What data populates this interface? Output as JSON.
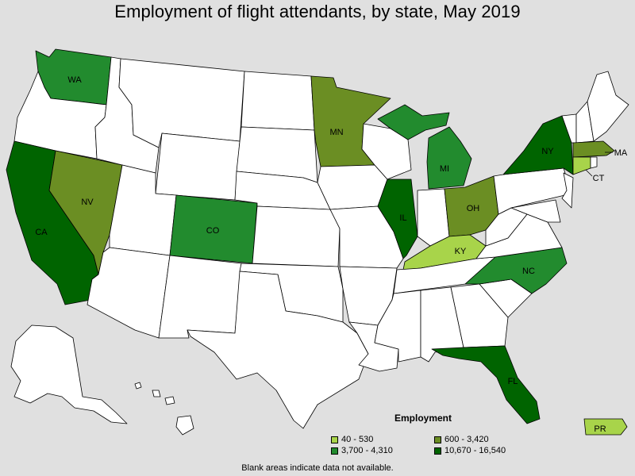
{
  "title": "Employment of flight attendants, by state, May 2019",
  "legend": {
    "title": "Employment",
    "items": [
      {
        "range": "40 - 530",
        "color": "#a8d44a"
      },
      {
        "range": "600 - 3,420",
        "color": "#6b8e23"
      },
      {
        "range": "3,700 - 4,310",
        "color": "#228b2e"
      },
      {
        "range": "10,670 - 16,540",
        "color": "#006400"
      }
    ]
  },
  "footnote": "Blank areas indicate data not available.",
  "state_labels": {
    "WA": "WA",
    "NV": "NV",
    "CA": "CA",
    "CO": "CO",
    "MN": "MN",
    "MI": "MI",
    "IL": "IL",
    "OH": "OH",
    "KY": "KY",
    "NY": "NY",
    "MA": "MA",
    "CT": "CT",
    "NC": "NC",
    "FL": "FL",
    "PR": "PR"
  },
  "map_data": {
    "WA": "3,700 - 4,310",
    "CO": "3,700 - 4,310",
    "MI": "3,700 - 4,310",
    "NC": "3,700 - 4,310",
    "NV": "600 - 3,420",
    "MN": "600 - 3,420",
    "OH": "600 - 3,420",
    "MA": "600 - 3,420",
    "KY": "40 - 530",
    "CT": "40 - 530",
    "PR": "40 - 530",
    "CA": "10,670 - 16,540",
    "IL": "10,670 - 16,540",
    "NY": "10,670 - 16,540",
    "FL": "10,670 - 16,540"
  },
  "colors": {
    "no_data": "#ffffff",
    "background": "#e0e0e0",
    "border": "#000000"
  }
}
